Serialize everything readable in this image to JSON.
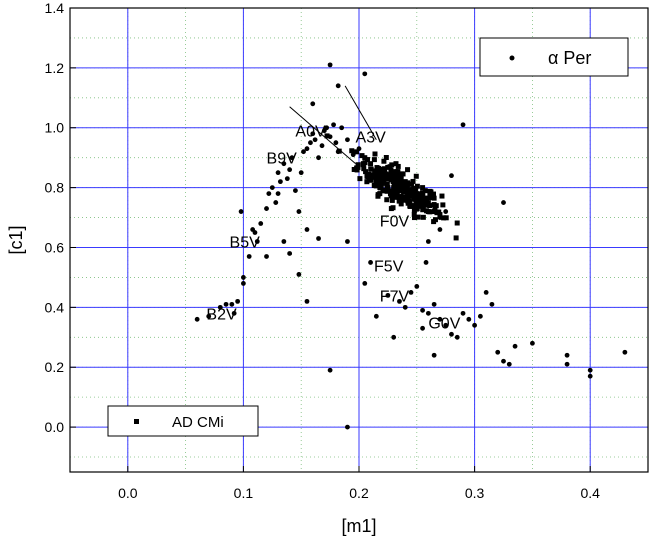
{
  "chart_data": {
    "type": "scatter",
    "title": "",
    "xlabel": "[m1]",
    "ylabel": "[c1]",
    "xlim": [
      -0.05,
      0.45
    ],
    "ylim": [
      -0.15,
      1.4
    ],
    "x_ticks": [
      "0.0",
      "0.1",
      "0.2",
      "0.3",
      "0.4"
    ],
    "x_tick_values": [
      0.0,
      0.1,
      0.2,
      0.3,
      0.4
    ],
    "y_ticks": [
      "0.0",
      "0.2",
      "0.4",
      "0.6",
      "0.8",
      "1.0",
      "1.2",
      "1.4"
    ],
    "y_tick_values": [
      0.0,
      0.2,
      0.4,
      0.6,
      0.8,
      1.0,
      1.2,
      1.4
    ],
    "grid": true,
    "series": [
      {
        "name": "α Per",
        "marker": "circle",
        "points": [
          [
            0.06,
            0.36
          ],
          [
            0.07,
            0.37
          ],
          [
            0.08,
            0.4
          ],
          [
            0.085,
            0.41
          ],
          [
            0.09,
            0.41
          ],
          [
            0.095,
            0.42
          ],
          [
            0.092,
            0.38
          ],
          [
            0.1,
            0.5
          ],
          [
            0.1,
            0.48
          ],
          [
            0.098,
            0.72
          ],
          [
            0.105,
            0.57
          ],
          [
            0.11,
            0.65
          ],
          [
            0.112,
            0.62
          ],
          [
            0.115,
            0.68
          ],
          [
            0.12,
            0.73
          ],
          [
            0.122,
            0.78
          ],
          [
            0.125,
            0.8
          ],
          [
            0.128,
            0.75
          ],
          [
            0.13,
            0.85
          ],
          [
            0.132,
            0.82
          ],
          [
            0.135,
            0.88
          ],
          [
            0.138,
            0.83
          ],
          [
            0.14,
            0.86
          ],
          [
            0.142,
            0.9
          ],
          [
            0.145,
            0.79
          ],
          [
            0.148,
            0.72
          ],
          [
            0.15,
            0.85
          ],
          [
            0.152,
            0.92
          ],
          [
            0.155,
            0.93
          ],
          [
            0.158,
            0.95
          ],
          [
            0.16,
            0.98
          ],
          [
            0.162,
            0.96
          ],
          [
            0.165,
            0.9
          ],
          [
            0.168,
            0.94
          ],
          [
            0.17,
            0.99
          ],
          [
            0.172,
            1.0
          ],
          [
            0.175,
            0.97
          ],
          [
            0.178,
            1.01
          ],
          [
            0.18,
            0.95
          ],
          [
            0.182,
            0.92
          ],
          [
            0.185,
            1.0
          ],
          [
            0.19,
            0.96
          ],
          [
            0.195,
            0.91
          ],
          [
            0.2,
            0.93
          ],
          [
            0.16,
            1.08
          ],
          [
            0.175,
            1.21
          ],
          [
            0.182,
            1.14
          ],
          [
            0.205,
            1.18
          ],
          [
            0.155,
            0.66
          ],
          [
            0.148,
            0.51
          ],
          [
            0.12,
            0.57
          ],
          [
            0.14,
            0.58
          ],
          [
            0.135,
            0.62
          ],
          [
            0.108,
            0.66
          ],
          [
            0.13,
            0.78
          ],
          [
            0.165,
            0.63
          ],
          [
            0.19,
            0.62
          ],
          [
            0.21,
            0.55
          ],
          [
            0.205,
            0.48
          ],
          [
            0.225,
            0.44
          ],
          [
            0.235,
            0.42
          ],
          [
            0.24,
            0.4
          ],
          [
            0.245,
            0.45
          ],
          [
            0.25,
            0.47
          ],
          [
            0.255,
            0.39
          ],
          [
            0.26,
            0.38
          ],
          [
            0.265,
            0.41
          ],
          [
            0.27,
            0.36
          ],
          [
            0.275,
            0.34
          ],
          [
            0.28,
            0.31
          ],
          [
            0.285,
            0.3
          ],
          [
            0.29,
            0.38
          ],
          [
            0.295,
            0.36
          ],
          [
            0.3,
            0.34
          ],
          [
            0.305,
            0.37
          ],
          [
            0.31,
            0.45
          ],
          [
            0.315,
            0.41
          ],
          [
            0.32,
            0.25
          ],
          [
            0.325,
            0.22
          ],
          [
            0.33,
            0.21
          ],
          [
            0.335,
            0.27
          ],
          [
            0.35,
            0.28
          ],
          [
            0.38,
            0.21
          ],
          [
            0.38,
            0.24
          ],
          [
            0.4,
            0.17
          ],
          [
            0.4,
            0.19
          ],
          [
            0.43,
            0.25
          ],
          [
            0.215,
            0.37
          ],
          [
            0.23,
            0.3
          ],
          [
            0.255,
            0.33
          ],
          [
            0.265,
            0.24
          ],
          [
            0.175,
            0.19
          ],
          [
            0.19,
            0.0
          ],
          [
            0.155,
            0.42
          ],
          [
            0.26,
            0.62
          ],
          [
            0.27,
            0.66
          ],
          [
            0.258,
            0.55
          ],
          [
            0.29,
            1.01
          ],
          [
            0.28,
            0.84
          ],
          [
            0.325,
            0.75
          ],
          [
            0.27,
            0.7
          ],
          [
            0.275,
            0.72
          ]
        ]
      },
      {
        "name": "AD CMi",
        "marker": "square",
        "cluster": {
          "cx": 0.235,
          "cy": 0.8,
          "sx": 0.018,
          "sy": 0.055,
          "count": 260
        },
        "points": [
          [
            0.205,
            0.9
          ],
          [
            0.21,
            0.88
          ],
          [
            0.22,
            0.86
          ],
          [
            0.23,
            0.84
          ],
          [
            0.24,
            0.82
          ],
          [
            0.25,
            0.78
          ],
          [
            0.26,
            0.75
          ],
          [
            0.265,
            0.72
          ],
          [
            0.27,
            0.71
          ],
          [
            0.245,
            0.74
          ],
          [
            0.235,
            0.77
          ],
          [
            0.225,
            0.8
          ],
          [
            0.215,
            0.84
          ],
          [
            0.255,
            0.8
          ],
          [
            0.26,
            0.72
          ],
          [
            0.232,
            0.88
          ],
          [
            0.242,
            0.86
          ],
          [
            0.218,
            0.78
          ],
          [
            0.228,
            0.73
          ],
          [
            0.248,
            0.7
          ]
        ]
      }
    ],
    "spectral_labels": [
      {
        "text": "B2V",
        "x": 0.068,
        "y": 0.36
      },
      {
        "text": "B5V",
        "x": 0.088,
        "y": 0.6
      },
      {
        "text": "B9V",
        "x": 0.12,
        "y": 0.88
      },
      {
        "text": "A0V",
        "x": 0.145,
        "y": 0.97
      },
      {
        "text": "A3V",
        "x": 0.197,
        "y": 0.95
      },
      {
        "text": "F0V",
        "x": 0.218,
        "y": 0.67
      },
      {
        "text": "F5V",
        "x": 0.213,
        "y": 0.52
      },
      {
        "text": "F7V",
        "x": 0.218,
        "y": 0.42
      },
      {
        "text": "G0V",
        "x": 0.26,
        "y": 0.33
      }
    ],
    "lines": [
      {
        "x1": 0.14,
        "y1": 1.07,
        "x2": 0.197,
        "y2": 0.88
      },
      {
        "x1": 0.188,
        "y1": 1.14,
        "x2": 0.215,
        "y2": 0.96
      }
    ],
    "legends": [
      {
        "text": "α Per",
        "marker": "circle",
        "position": "top-right"
      },
      {
        "text": "AD CMi",
        "marker": "square",
        "position": "bottom-left"
      }
    ]
  }
}
